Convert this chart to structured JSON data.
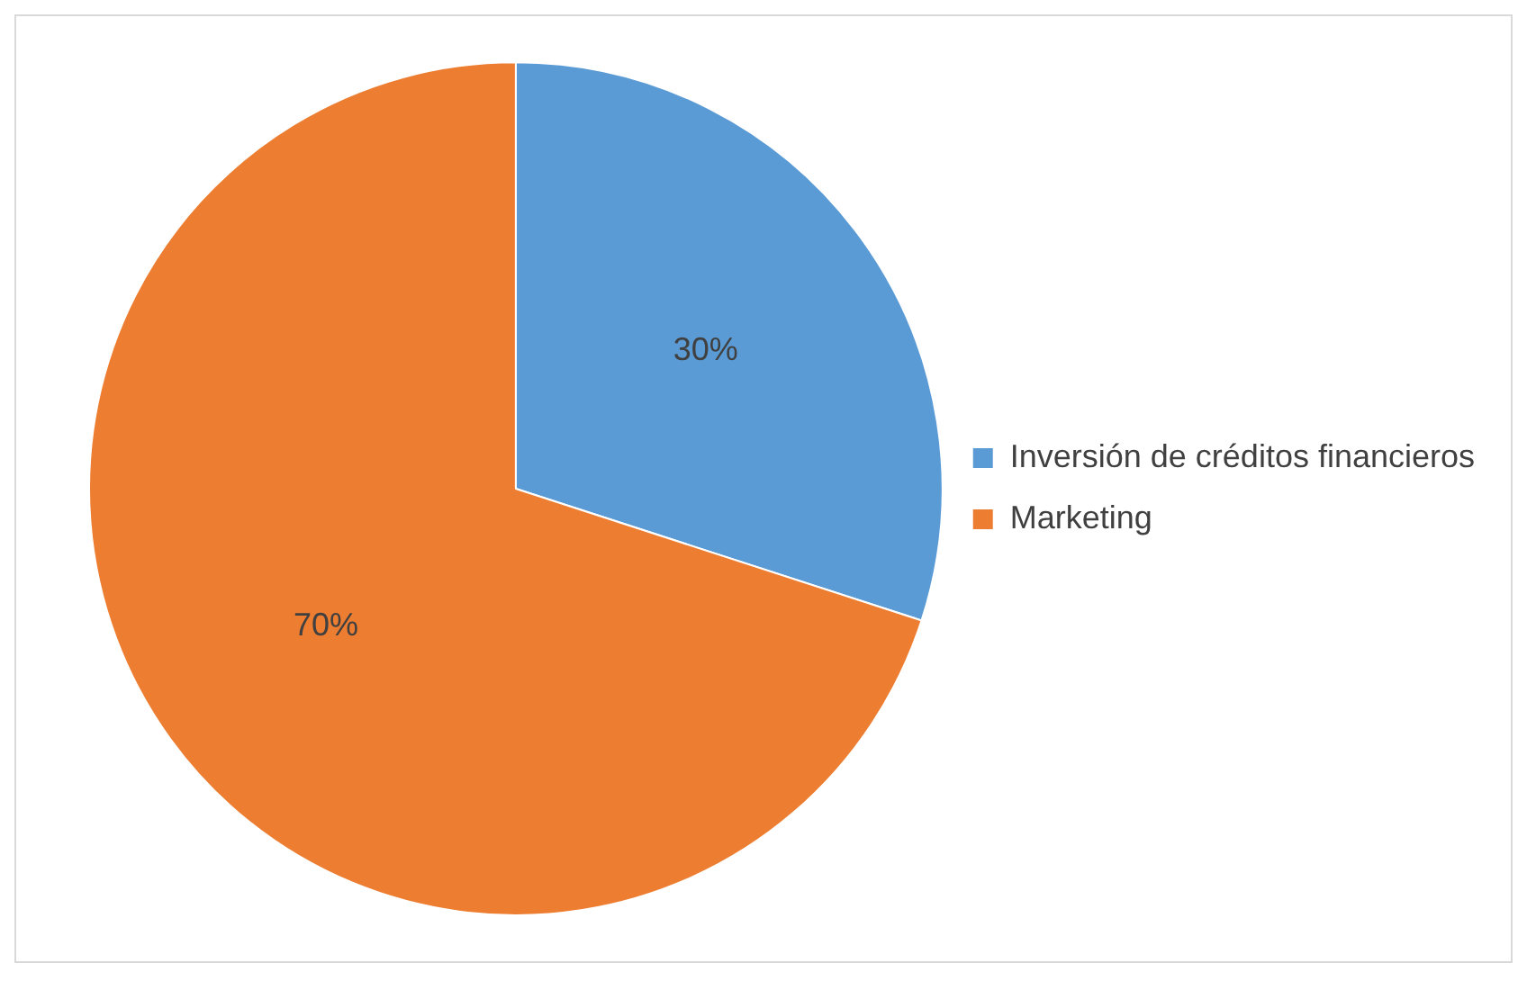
{
  "chart_data": {
    "type": "pie",
    "categories": [
      "Inversión de créditos financieros",
      "Marketing"
    ],
    "values": [
      30,
      70
    ],
    "colors": [
      "#5b9bd5",
      "#ed7d31"
    ],
    "value_labels": [
      "30%",
      "70%"
    ],
    "legend": "right"
  }
}
